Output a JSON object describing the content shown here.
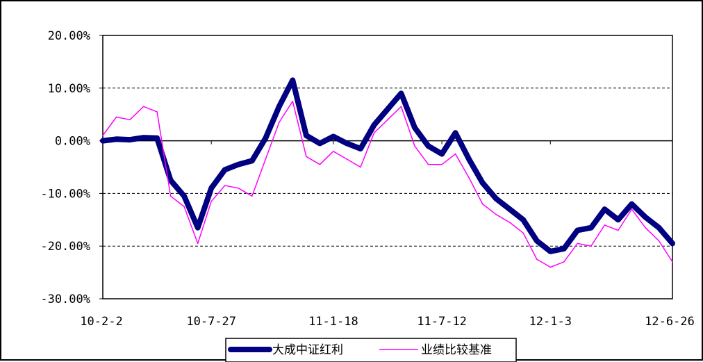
{
  "chart_data": {
    "type": "line",
    "title": "",
    "xlabel": "",
    "ylabel": "",
    "x_tick_labels": [
      "10-2-2",
      "10-7-27",
      "11-1-18",
      "11-7-12",
      "12-1-3",
      "12-6-26"
    ],
    "y_tick_labels": [
      "20.00%",
      "10.00%",
      "0.00%",
      "-10.00%",
      "-20.00%",
      "-30.00%"
    ],
    "y_ticks": [
      20,
      10,
      0,
      -10,
      -20,
      -30
    ],
    "ylim": [
      -30,
      20
    ],
    "grid": "dashed horizontal",
    "legend_position": "bottom",
    "x_dates": [
      "10-2-2",
      "10-3-1",
      "10-4-1",
      "10-4-20",
      "10-5-10",
      "10-6-1",
      "10-6-20",
      "10-7-6",
      "10-7-27",
      "10-8-20",
      "10-9-15",
      "10-10-12",
      "10-10-25",
      "10-11-10",
      "10-11-25",
      "10-12-10",
      "11-1-1",
      "11-1-18",
      "11-2-10",
      "11-3-5",
      "11-4-1",
      "11-4-18",
      "11-5-10",
      "11-6-1",
      "11-6-20",
      "11-7-12",
      "11-8-5",
      "11-9-1",
      "11-9-25",
      "11-10-20",
      "11-11-10",
      "11-12-1",
      "11-12-20",
      "12-1-3",
      "12-1-20",
      "12-2-15",
      "12-3-10",
      "12-4-1",
      "12-4-20",
      "12-5-15",
      "12-6-1",
      "12-6-15",
      "12-6-26"
    ],
    "series": [
      {
        "name": "大成中证红利",
        "color": "#000080",
        "values": [
          0.0,
          0.3,
          0.2,
          0.6,
          0.5,
          -7.5,
          -10.5,
          -16.5,
          -9.0,
          -5.5,
          -4.5,
          -3.8,
          0.5,
          6.5,
          11.5,
          1.0,
          -0.5,
          0.8,
          -0.5,
          -1.5,
          3.0,
          6.0,
          9.0,
          2.5,
          -1.0,
          -2.5,
          1.5,
          -3.5,
          -8.0,
          -11.0,
          -13.0,
          -15.0,
          -19.0,
          -21.0,
          -20.5,
          -17.0,
          -16.5,
          -13.0,
          -15.0,
          -12.0,
          -14.5,
          -16.5,
          -19.5
        ]
      },
      {
        "name": "业绩比较基准",
        "color": "#ff00ff",
        "values": [
          1.0,
          4.5,
          4.0,
          6.5,
          5.5,
          -10.5,
          -12.5,
          -19.5,
          -11.5,
          -8.5,
          -9.0,
          -10.5,
          -3.5,
          3.5,
          7.5,
          -3.0,
          -4.5,
          -2.0,
          -3.5,
          -5.0,
          1.5,
          4.0,
          6.5,
          -1.0,
          -4.5,
          -4.5,
          -2.5,
          -7.0,
          -12.0,
          -14.0,
          -15.5,
          -17.5,
          -22.5,
          -24.0,
          -23.0,
          -19.5,
          -20.0,
          -16.0,
          -17.0,
          -13.0,
          -16.5,
          -19.0,
          -23.0
        ]
      }
    ]
  }
}
